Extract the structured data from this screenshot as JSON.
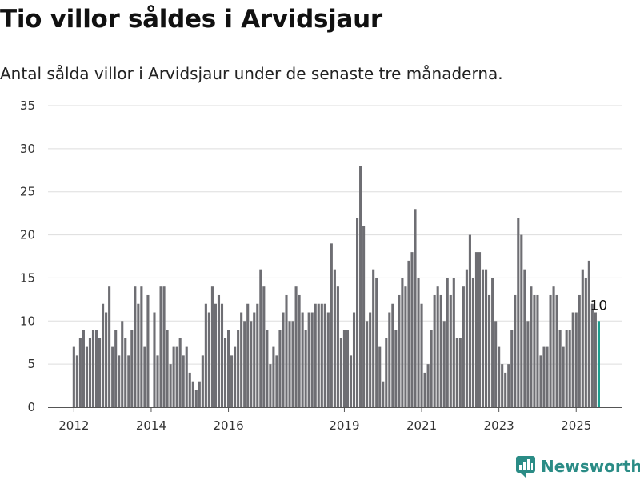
{
  "title": "Tio villor såldes i Arvidsjaur",
  "subtitle": "Antal sålda villor i Arvidsjaur under de senaste tre månaderna.",
  "brand": "Newsworthy",
  "colors": {
    "bar": "#6e6e73",
    "highlight": "#1a9e8f",
    "grid": "#dddddd",
    "brand": "#2b8c86"
  },
  "chart_data": {
    "type": "bar",
    "title": "",
    "xlabel": "",
    "ylabel": "",
    "ylim": [
      0,
      35
    ],
    "y_ticks": [
      0,
      5,
      10,
      15,
      20,
      25,
      30,
      35
    ],
    "x_ticks": [
      "2012",
      "2014",
      "2016",
      "2019",
      "2021",
      "2023",
      "2025"
    ],
    "highlight_label": "10",
    "values": [
      7,
      6,
      8,
      9,
      7,
      8,
      9,
      9,
      8,
      12,
      11,
      14,
      7,
      9,
      6,
      10,
      8,
      6,
      9,
      14,
      12,
      14,
      7,
      13,
      0,
      11,
      6,
      14,
      14,
      9,
      5,
      7,
      7,
      8,
      6,
      7,
      4,
      3,
      2,
      3,
      6,
      12,
      11,
      14,
      12,
      13,
      12,
      8,
      9,
      6,
      7,
      9,
      11,
      10,
      12,
      10,
      11,
      12,
      16,
      14,
      9,
      5,
      7,
      6,
      9,
      11,
      13,
      10,
      10,
      14,
      13,
      11,
      9,
      11,
      11,
      12,
      12,
      12,
      12,
      11,
      19,
      16,
      14,
      8,
      9,
      9,
      6,
      11,
      22,
      28,
      21,
      10,
      11,
      16,
      15,
      7,
      3,
      8,
      11,
      12,
      9,
      13,
      15,
      14,
      17,
      18,
      23,
      15,
      12,
      4,
      5,
      9,
      13,
      14,
      13,
      10,
      15,
      13,
      15,
      8,
      8,
      14,
      16,
      20,
      15,
      18,
      18,
      16,
      16,
      13,
      15,
      10,
      7,
      5,
      4,
      5,
      9,
      13,
      22,
      20,
      16,
      10,
      14,
      13,
      13,
      6,
      7,
      7,
      13,
      14,
      13,
      9,
      7,
      9,
      9,
      11,
      11,
      13,
      16,
      15,
      17,
      12,
      11,
      10
    ]
  }
}
